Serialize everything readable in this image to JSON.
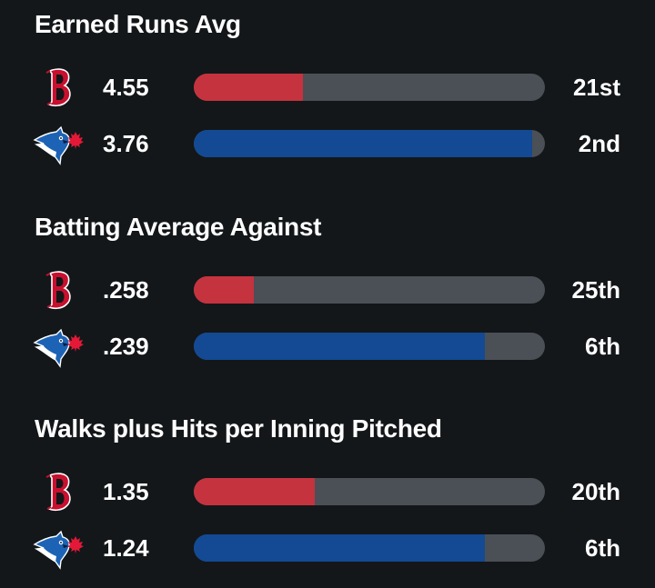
{
  "colors": {
    "background": "#131719",
    "track": "#4b5056",
    "red_sox_fill": "#c5333f",
    "blue_jays_fill": "#134a93"
  },
  "sections": [
    {
      "title": "Earned Runs Avg",
      "rows": [
        {
          "team_icon": "red-sox-logo-icon",
          "value": "4.55",
          "rank": "21st",
          "fill": 0.31
        },
        {
          "team_icon": "blue-jays-logo-icon",
          "value": "3.76",
          "rank": "2nd",
          "fill": 0.965
        }
      ]
    },
    {
      "title": "Batting Average Against",
      "rows": [
        {
          "team_icon": "red-sox-logo-icon",
          "value": ".258",
          "rank": "25th",
          "fill": 0.17
        },
        {
          "team_icon": "blue-jays-logo-icon",
          "value": ".239",
          "rank": "6th",
          "fill": 0.83
        }
      ]
    },
    {
      "title": "Walks plus Hits per Inning Pitched",
      "rows": [
        {
          "team_icon": "red-sox-logo-icon",
          "value": "1.35",
          "rank": "20th",
          "fill": 0.345
        },
        {
          "team_icon": "blue-jays-logo-icon",
          "value": "1.24",
          "rank": "6th",
          "fill": 0.83
        }
      ]
    }
  ]
}
